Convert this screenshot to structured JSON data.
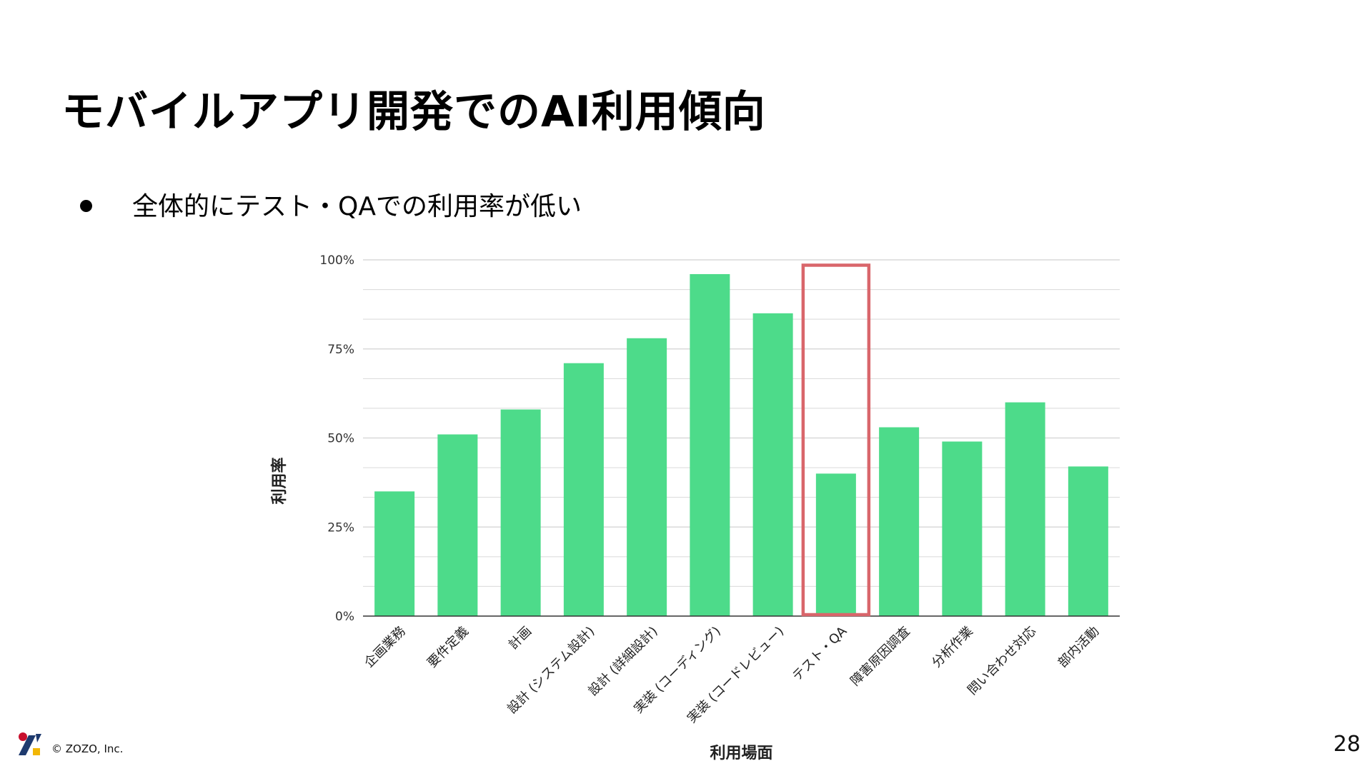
{
  "slide": {
    "title": "モバイルアプリ開発でのAI利用傾向",
    "bullet": "全体的にテスト・QAでの利用率が低い",
    "footer_copyright": "© ZOZO, Inc.",
    "page_number": "28"
  },
  "colors": {
    "bar": "#4ddb8a",
    "highlight_box": "#d9666b",
    "gridline": "#d9d9d9",
    "axis": "#333333",
    "logo_red": "#c8102e",
    "logo_navy": "#1e3a6e",
    "logo_yellow": "#f2b705"
  },
  "chart_data": {
    "type": "bar",
    "categories": [
      "企画業務",
      "要件定義",
      "計画",
      "設計 (システム設計)",
      "設計 (詳細設計)",
      "実装 (コーディング)",
      "実装 (コードレビュー)",
      "テスト・QA",
      "障害原因調査",
      "分析作業",
      "問い合わせ対応",
      "部内活動"
    ],
    "values": [
      35,
      51,
      58,
      71,
      78,
      96,
      85,
      40,
      53,
      49,
      60,
      42
    ],
    "unit": "%",
    "xlabel": "利用場面",
    "ylabel": "利用率",
    "ylim": [
      0,
      100
    ],
    "yticks": [
      "0%",
      "25%",
      "50%",
      "75%",
      "100%"
    ],
    "grid": true,
    "highlight_category": "テスト・QA"
  }
}
